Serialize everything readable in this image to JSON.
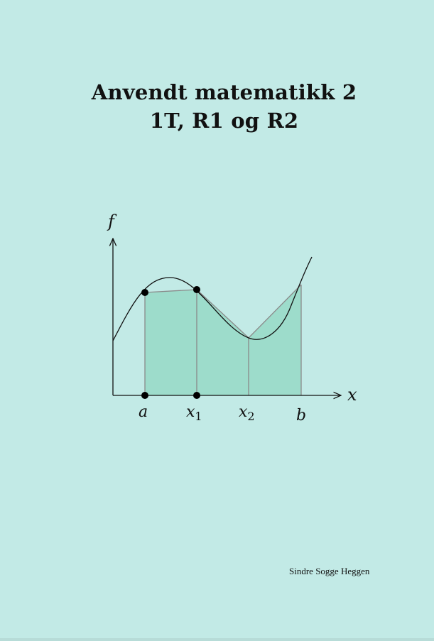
{
  "cover": {
    "title_line1": "Anvendt matematikk 2",
    "title_line2": "1T, R1 og R2",
    "author": "Sindre Sogge Heggen"
  },
  "diagram": {
    "y_axis_label": "f",
    "x_axis_label": "x",
    "x_tick_a": "a",
    "x_tick_x1_base": "x",
    "x_tick_x1_sub": "1",
    "x_tick_x2_base": "x",
    "x_tick_x2_sub": "2",
    "x_tick_b": "b",
    "colors": {
      "background": "#c2eae6",
      "fill": "#9ddccb",
      "curve": "#000000",
      "grid_lines": "#888888"
    }
  }
}
